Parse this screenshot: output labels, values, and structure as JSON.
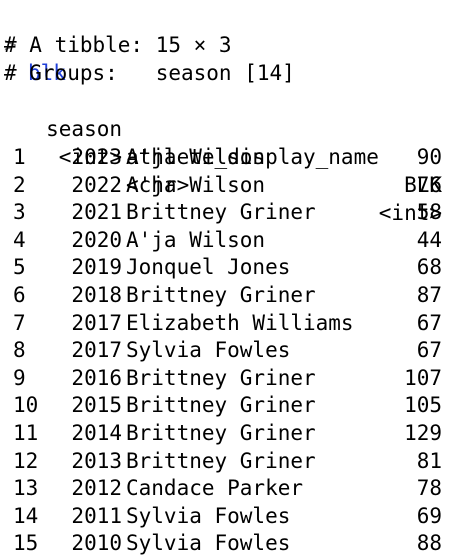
{
  "console": {
    "prompt": ">",
    "command": "blk",
    "header_lines": [
      "# A tibble: 15 × 3",
      "# Groups:   season [14]"
    ],
    "columns": [
      {
        "name": "season",
        "type": "<int>"
      },
      {
        "name": "athlete_display_name",
        "type": "<chr>"
      },
      {
        "name": "BLK",
        "type": "<int>"
      }
    ],
    "rows": [
      {
        "index": "1",
        "season": "2023",
        "athlete": "A'ja Wilson",
        "blk": "90"
      },
      {
        "index": "2",
        "season": "2022",
        "athlete": "A'ja Wilson",
        "blk": "76"
      },
      {
        "index": "3",
        "season": "2021",
        "athlete": "Brittney Griner",
        "blk": "58"
      },
      {
        "index": "4",
        "season": "2020",
        "athlete": "A'ja Wilson",
        "blk": "44"
      },
      {
        "index": "5",
        "season": "2019",
        "athlete": "Jonquel Jones",
        "blk": "68"
      },
      {
        "index": "6",
        "season": "2018",
        "athlete": "Brittney Griner",
        "blk": "87"
      },
      {
        "index": "7",
        "season": "2017",
        "athlete": "Elizabeth Williams",
        "blk": "67"
      },
      {
        "index": "8",
        "season": "2017",
        "athlete": "Sylvia Fowles",
        "blk": "67"
      },
      {
        "index": "9",
        "season": "2016",
        "athlete": "Brittney Griner",
        "blk": "107"
      },
      {
        "index": "10",
        "season": "2015",
        "athlete": "Brittney Griner",
        "blk": "105"
      },
      {
        "index": "11",
        "season": "2014",
        "athlete": "Brittney Griner",
        "blk": "129"
      },
      {
        "index": "12",
        "season": "2013",
        "athlete": "Brittney Griner",
        "blk": "81"
      },
      {
        "index": "13",
        "season": "2012",
        "athlete": "Candace Parker",
        "blk": "78"
      },
      {
        "index": "14",
        "season": "2011",
        "athlete": "Sylvia Fowles",
        "blk": "69"
      },
      {
        "index": "15",
        "season": "2010",
        "athlete": "Sylvia Fowles",
        "blk": "88"
      }
    ]
  },
  "colors": {
    "prompt": "#7f7f7f",
    "command": "#1f3fd8",
    "text": "#000000",
    "background": "#ffffff"
  }
}
